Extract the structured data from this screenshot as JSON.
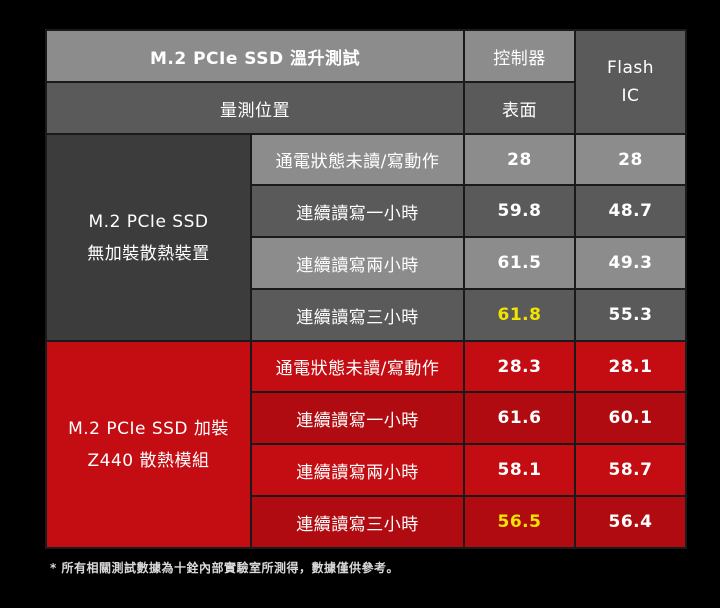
{
  "table": {
    "title": "M.2 PCIe SSD 溫升測試",
    "position_label": "量測位置",
    "controller_header": "控制器",
    "controller_sub": "表面",
    "flash_line1": "Flash",
    "flash_line2": "IC",
    "groups": [
      {
        "label_line1": "M.2 PCIe SSD",
        "label_line2": "無加裝散熱裝置",
        "rows": [
          {
            "label": "通電狀態未讀/寫動作",
            "controller": "28",
            "flash": "28"
          },
          {
            "label": "連續讀寫一小時",
            "controller": "59.8",
            "flash": "48.7"
          },
          {
            "label": "連續讀寫兩小時",
            "controller": "61.5",
            "flash": "49.3"
          },
          {
            "label": "連續讀寫三小時",
            "controller": "61.8",
            "flash": "55.3"
          }
        ]
      },
      {
        "label_line1": "M.2 PCIe SSD 加裝",
        "label_line2": "Z440 散熱模組",
        "rows": [
          {
            "label": "通電狀態未讀/寫動作",
            "controller": "28.3",
            "flash": "28.1"
          },
          {
            "label": "連續讀寫一小時",
            "controller": "61.6",
            "flash": "60.1"
          },
          {
            "label": "連續讀寫兩小時",
            "controller": "58.1",
            "flash": "58.7"
          },
          {
            "label": "連續讀寫三小時",
            "controller": "56.5",
            "flash": "56.4"
          }
        ]
      }
    ]
  },
  "footnote": "* 所有相關測試數據為十銓內部實驗室所測得，數據僅供參考。",
  "colors": {
    "background": "#000000",
    "gray_light": "#8c8c8c",
    "gray_mid": "#5a5a5a",
    "gray_dark": "#3c3c3c",
    "red": "#c30d12",
    "highlight": "#f3e300"
  }
}
